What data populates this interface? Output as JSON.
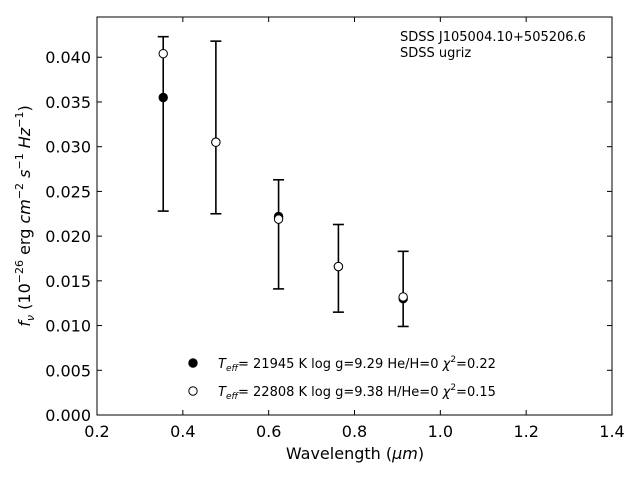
{
  "chart_data": {
    "type": "scatter",
    "title": "",
    "xlabel": "Wavelength",
    "xlabel_unit": "μm",
    "ylabel_prefix": "f",
    "ylabel_sub": "ν",
    "ylabel_units": "10^-26 erg cm^-2 s^-1 Hz^-1",
    "xlim": [
      0.2,
      1.4
    ],
    "ylim": [
      0.0,
      0.0445
    ],
    "xticks": [
      "0.2",
      "0.4",
      "0.6",
      "0.8",
      "1.0",
      "1.2",
      "1.4"
    ],
    "yticks": [
      "0.000",
      "0.005",
      "0.010",
      "0.015",
      "0.020",
      "0.025",
      "0.030",
      "0.035",
      "0.040"
    ],
    "grid": false,
    "legend_position": "bottom-center",
    "annotations": [
      "SDSS J105004.10+505206.6",
      "SDSS ugriz"
    ],
    "observed": {
      "x": [
        0.3543,
        0.477,
        0.6231,
        0.7625,
        0.9134
      ],
      "y": [
        0.0355,
        0.0305,
        0.0222,
        0.0166,
        0.013
      ],
      "err_low": [
        0.0127,
        0.008,
        0.0081,
        0.0051,
        0.0031
      ],
      "err_high": [
        0.0068,
        0.0113,
        0.0041,
        0.0047,
        0.0053
      ]
    },
    "series": [
      {
        "name": "Teff= 21945 K  log g=9.29  He/H=0  χ2=0.22",
        "marker": "filled",
        "teff": "21945",
        "logg": "9.29",
        "comp": "He/H=0",
        "chi2": "0.22",
        "x": [
          0.3543,
          0.477,
          0.6231,
          0.7625,
          0.9134
        ],
        "y": [
          0.0355,
          0.0305,
          0.0222,
          0.0166,
          0.013
        ]
      },
      {
        "name": "Teff= 22808 K  log g=9.38  H/He=0  χ2=0.15",
        "marker": "open",
        "teff": "22808",
        "logg": "9.38",
        "comp": "H/He=0",
        "chi2": "0.15",
        "x": [
          0.3543,
          0.477,
          0.6231,
          0.7625,
          0.9134
        ],
        "y": [
          0.0404,
          0.0305,
          0.0219,
          0.0166,
          0.0132
        ]
      }
    ],
    "colors": {
      "marker": "#000000",
      "open_fill": "#ffffff",
      "axis": "#000000"
    }
  }
}
